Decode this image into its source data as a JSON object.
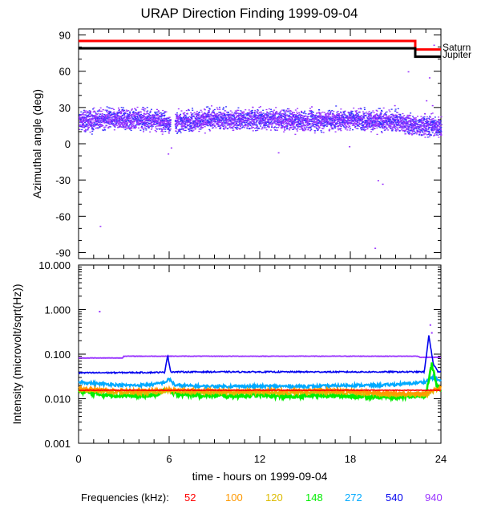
{
  "colors": {
    "freq": {
      "52": "#ff0000",
      "100": "#ff9900",
      "120": "#ddbb00",
      "148": "#00ee00",
      "272": "#00aaff",
      "540": "#0000ee",
      "940": "#9933ff"
    },
    "saturn": "#ff0000",
    "jupiter": "#000000",
    "axis": "#000000"
  },
  "chart_data": [
    {
      "type": "scatter",
      "title": "URAP Direction Finding  1999-09-04",
      "ylabel": "Azimuthal angle (deg)",
      "ylim": [
        -95,
        95
      ],
      "xlim": [
        0,
        24
      ],
      "yticks": [
        90,
        60,
        30,
        0,
        -30,
        -60,
        -90
      ],
      "ytick_labels": [
        "90",
        "60",
        "30",
        "0",
        "-30",
        "-60",
        "-90"
      ],
      "series": [
        {
          "name": "Saturn",
          "style": "step-line",
          "points": [
            [
              0,
              85
            ],
            [
              22.3,
              85
            ],
            [
              22.3,
              78
            ],
            [
              24,
              78
            ]
          ]
        },
        {
          "name": "Jupiter",
          "style": "step-line",
          "points": [
            [
              0,
              79
            ],
            [
              22.3,
              79
            ],
            [
              22.3,
              72
            ],
            [
              24,
              72
            ]
          ]
        },
        {
          "name": "940 kHz azimuth",
          "style": "scatter-band",
          "band": [
            [
              0,
              19,
              7
            ],
            [
              1,
              20,
              7
            ],
            [
              2,
              21,
              7
            ],
            [
              3,
              20,
              7
            ],
            [
              4,
              21,
              7
            ],
            [
              5,
              20,
              7
            ],
            [
              6,
              17,
              7
            ],
            [
              7,
              19,
              7
            ],
            [
              8,
              20,
              7
            ],
            [
              9,
              21,
              7
            ],
            [
              10,
              20,
              7
            ],
            [
              11,
              21,
              7
            ],
            [
              12,
              20,
              7
            ],
            [
              13,
              21,
              7
            ],
            [
              14,
              20,
              7
            ],
            [
              15,
              19,
              7
            ],
            [
              16,
              20,
              7
            ],
            [
              17,
              20,
              7
            ],
            [
              18,
              21,
              7
            ],
            [
              19,
              20,
              7
            ],
            [
              20,
              19,
              7
            ],
            [
              21,
              19,
              7
            ],
            [
              22,
              16,
              7
            ],
            [
              23,
              15,
              7
            ],
            [
              24,
              14,
              7
            ]
          ],
          "gaps": [
            [
              6.05,
              6.35
            ]
          ],
          "outliers": [
            [
              1.4,
              -68
            ],
            [
              5.9,
              -8
            ],
            [
              6.1,
              -3
            ],
            [
              12.8,
              22
            ],
            [
              13.2,
              -7
            ],
            [
              17.9,
              -2
            ],
            [
              19.8,
              -30
            ],
            [
              20.1,
              -33
            ],
            [
              19.6,
              -86
            ],
            [
              21.8,
              60
            ],
            [
              23.2,
              55
            ],
            [
              23.5,
              82
            ],
            [
              23.0,
              36
            ],
            [
              23.4,
              32
            ],
            [
              20.9,
              32
            ],
            [
              2.6,
              30
            ],
            [
              9.3,
              29
            ],
            [
              15.4,
              31
            ]
          ]
        }
      ]
    },
    {
      "type": "line",
      "ylabel": "Intensity (microvolt/sqrt(Hz))",
      "yscale": "log",
      "ylim": [
        0.001,
        10
      ],
      "xlim": [
        0,
        24
      ],
      "xlabel": "time - hours on 1999-09-04",
      "xticks": [
        0,
        6,
        12,
        18,
        24
      ],
      "xtick_labels": [
        "0",
        "6",
        "12",
        "18",
        "24"
      ],
      "yticks": [
        10,
        1,
        0.1,
        0.01,
        0.001
      ],
      "ytick_labels": [
        "10.000",
        "1.000",
        "0.100",
        "0.010",
        "0.001"
      ],
      "series": [
        {
          "name": "940",
          "values": [
            [
              0,
              0.082
            ],
            [
              2.9,
              0.082
            ],
            [
              3.0,
              0.09
            ],
            [
              22.5,
              0.09
            ],
            [
              22.6,
              0.085
            ],
            [
              24,
              0.085
            ]
          ],
          "extra_points": [
            [
              1.4,
              0.9
            ],
            [
              23.3,
              0.45
            ],
            [
              23.4,
              0.3
            ]
          ]
        },
        {
          "name": "540",
          "values": [
            [
              0,
              0.038
            ],
            [
              5.7,
              0.039
            ],
            [
              5.9,
              0.095
            ],
            [
              6.1,
              0.04
            ],
            [
              22.9,
              0.04
            ],
            [
              23.2,
              0.26
            ],
            [
              23.5,
              0.06
            ],
            [
              23.8,
              0.04
            ],
            [
              24,
              0.04
            ]
          ]
        },
        {
          "name": "272",
          "values": [
            [
              0,
              0.024
            ],
            [
              1,
              0.022
            ],
            [
              2,
              0.021
            ],
            [
              3,
              0.02
            ],
            [
              4,
              0.02
            ],
            [
              5,
              0.021
            ],
            [
              5.8,
              0.024
            ],
            [
              6.0,
              0.028
            ],
            [
              6.4,
              0.02
            ],
            [
              8,
              0.019
            ],
            [
              10,
              0.019
            ],
            [
              12,
              0.019
            ],
            [
              14,
              0.019
            ],
            [
              16,
              0.019
            ],
            [
              18,
              0.02
            ],
            [
              20,
              0.02
            ],
            [
              21,
              0.021
            ],
            [
              22,
              0.022
            ],
            [
              23,
              0.024
            ],
            [
              23.4,
              0.03
            ],
            [
              24,
              0.025
            ]
          ]
        },
        {
          "name": "148",
          "values": [
            [
              0,
              0.015
            ],
            [
              1,
              0.013
            ],
            [
              2,
              0.012
            ],
            [
              3,
              0.012
            ],
            [
              4,
              0.0115
            ],
            [
              5,
              0.012
            ],
            [
              5.8,
              0.016
            ],
            [
              6.2,
              0.013
            ],
            [
              8,
              0.012
            ],
            [
              10,
              0.0115
            ],
            [
              12,
              0.012
            ],
            [
              14,
              0.011
            ],
            [
              16,
              0.012
            ],
            [
              18,
              0.0115
            ],
            [
              20,
              0.011
            ],
            [
              21,
              0.011
            ],
            [
              22,
              0.0115
            ],
            [
              23,
              0.012
            ],
            [
              23.4,
              0.06
            ],
            [
              23.7,
              0.02
            ],
            [
              24,
              0.016
            ]
          ]
        },
        {
          "name": "120",
          "values": [
            [
              0,
              0.016
            ],
            [
              2,
              0.014
            ],
            [
              4,
              0.0135
            ],
            [
              6,
              0.0145
            ],
            [
              8,
              0.014
            ],
            [
              10,
              0.0135
            ],
            [
              12,
              0.014
            ],
            [
              14,
              0.0135
            ],
            [
              16,
              0.014
            ],
            [
              18,
              0.0135
            ],
            [
              20,
              0.0125
            ],
            [
              22,
              0.0125
            ],
            [
              23,
              0.0125
            ],
            [
              24,
              0.017
            ]
          ]
        },
        {
          "name": "100",
          "values": [
            [
              0,
              0.017
            ],
            [
              2,
              0.0155
            ],
            [
              4,
              0.015
            ],
            [
              6,
              0.016
            ],
            [
              8,
              0.0155
            ],
            [
              10,
              0.015
            ],
            [
              12,
              0.0155
            ],
            [
              14,
              0.015
            ],
            [
              16,
              0.0155
            ],
            [
              18,
              0.015
            ],
            [
              20,
              0.0135
            ],
            [
              22,
              0.013
            ],
            [
              23,
              0.013
            ],
            [
              24,
              0.018
            ]
          ]
        },
        {
          "name": "52",
          "values": [
            [
              0,
              0.0155
            ],
            [
              24,
              0.0155
            ]
          ]
        }
      ]
    }
  ],
  "legend": {
    "label": "Frequencies (kHz):",
    "items": [
      "52",
      "100",
      "120",
      "148",
      "272",
      "540",
      "940"
    ]
  },
  "planet_labels": {
    "saturn": "Saturn",
    "jupiter": "Jupiter"
  }
}
